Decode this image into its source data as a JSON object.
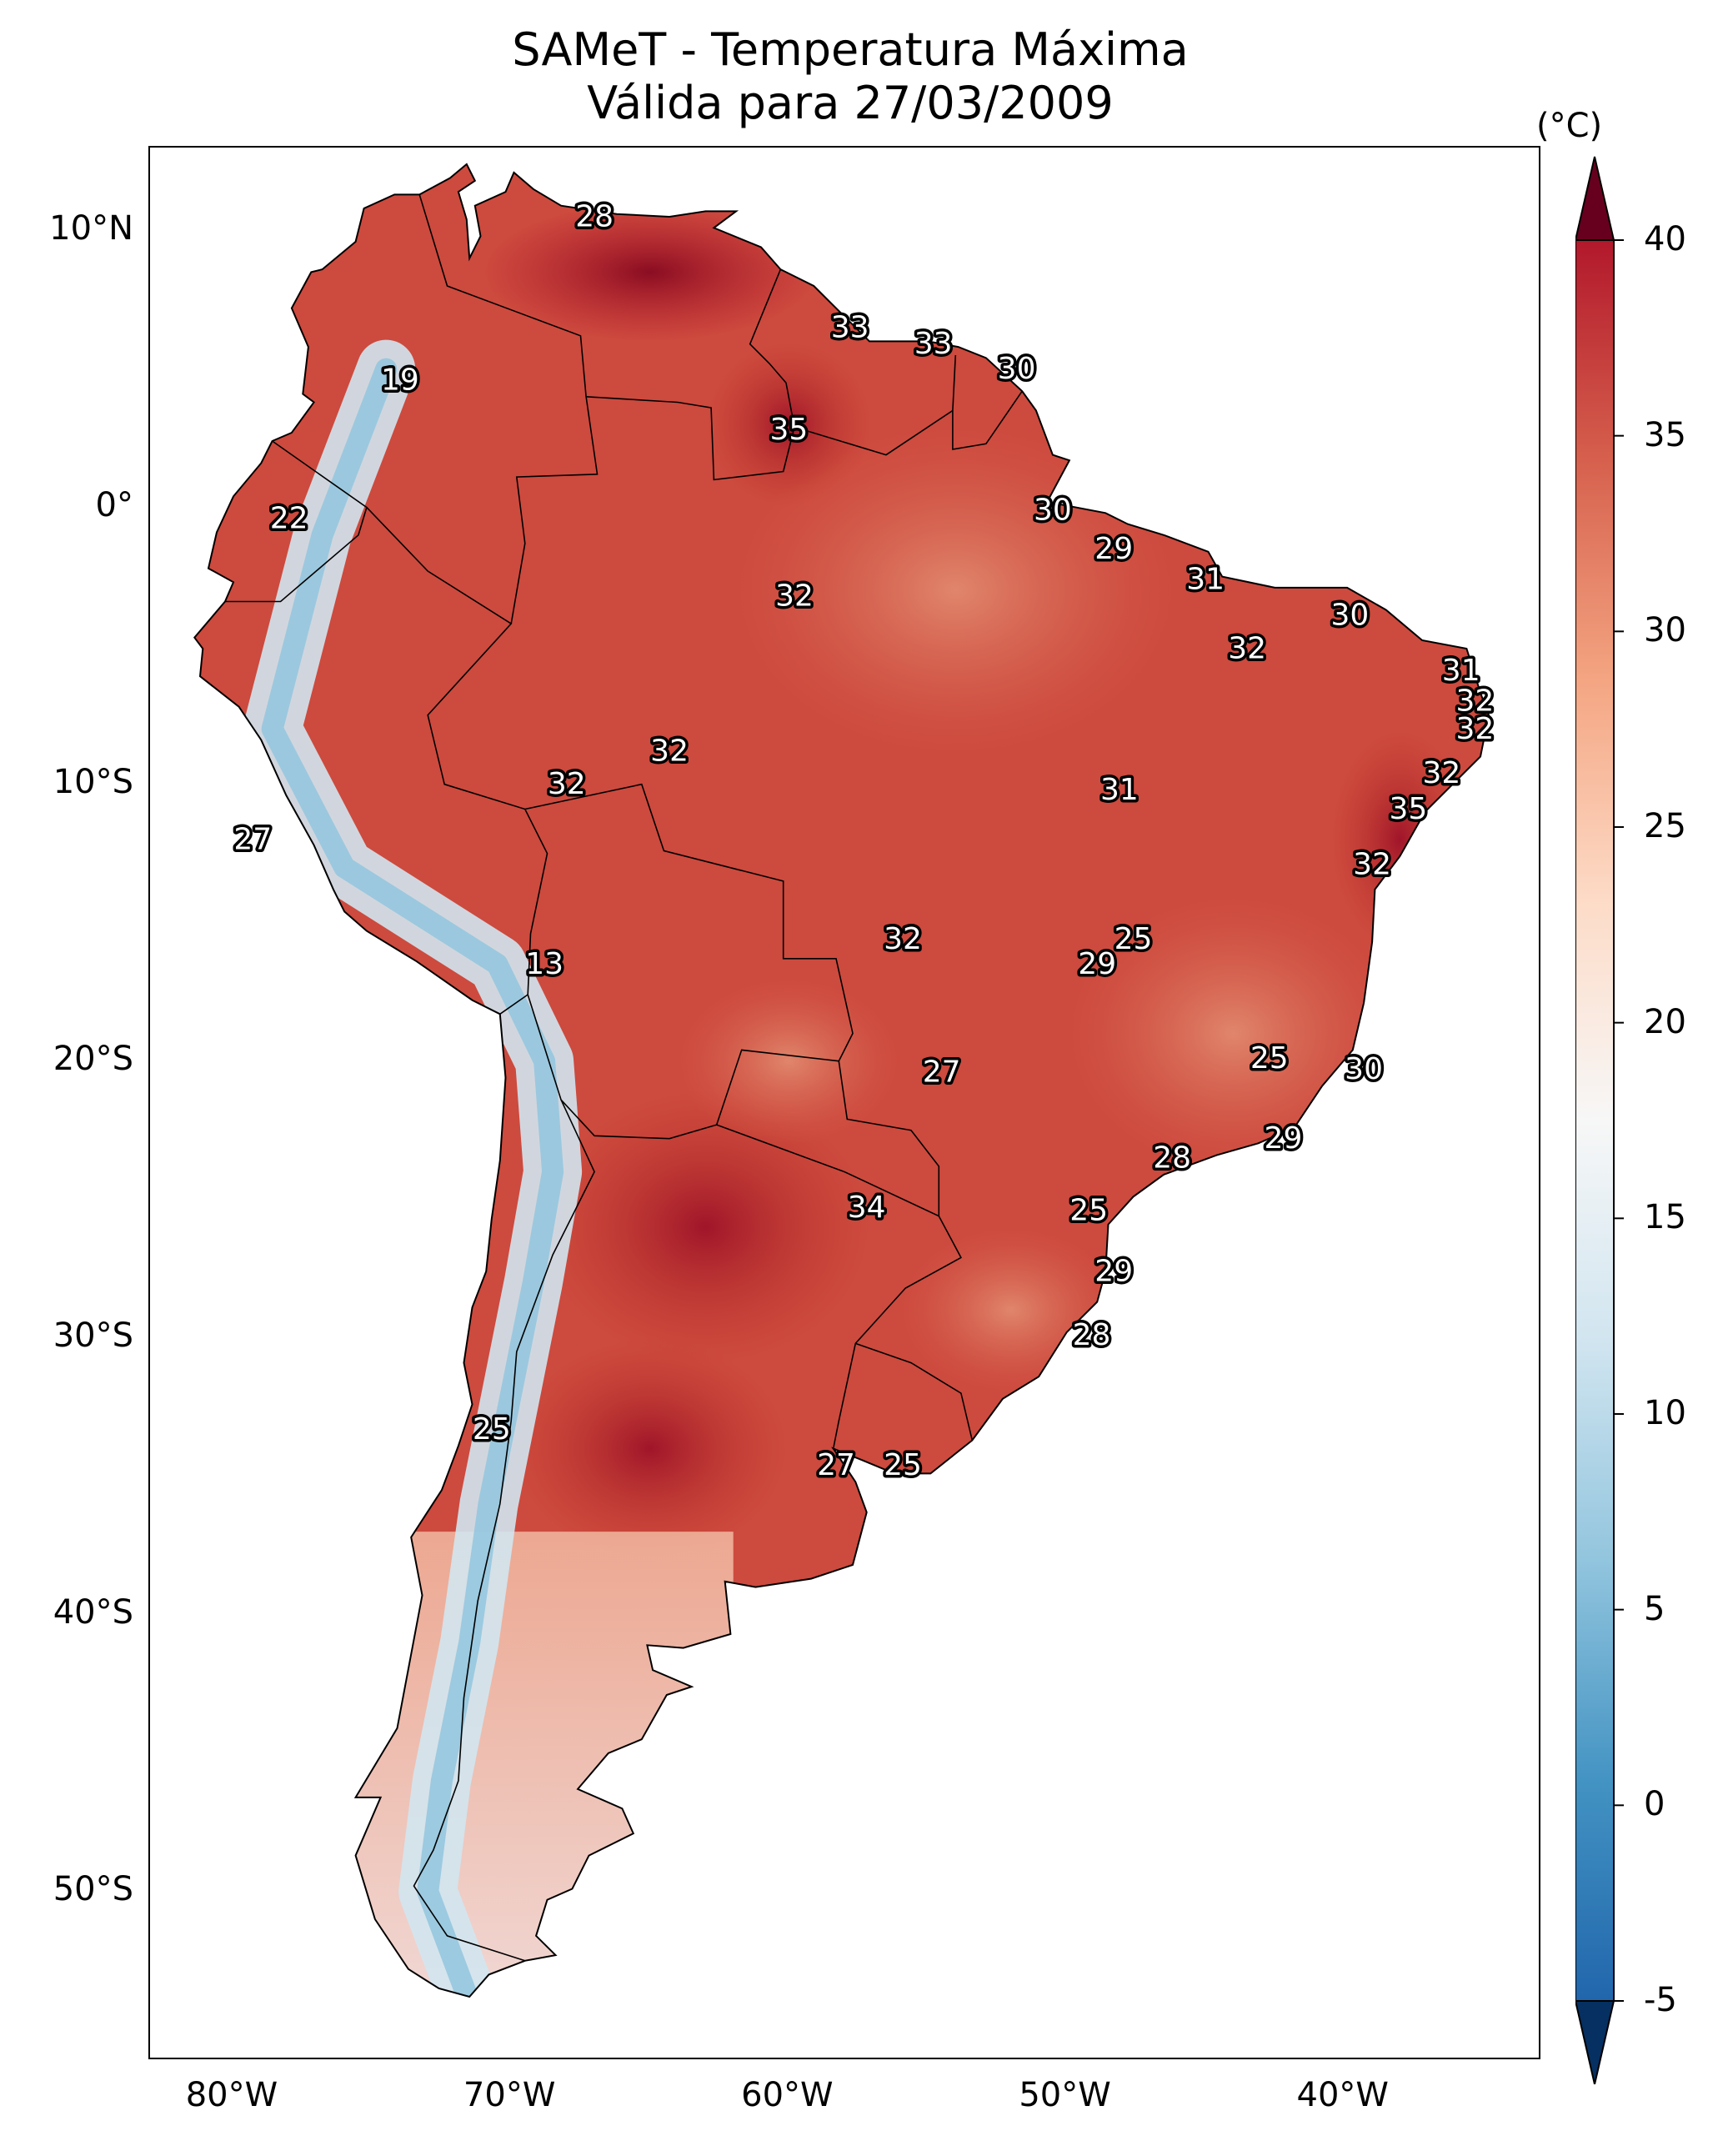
{
  "title": {
    "line1": "SAMeT - Temperatura Máxima",
    "line2": "Válida para 27/03/2009"
  },
  "lat_ticks": [
    {
      "value": 10,
      "label": "10°N"
    },
    {
      "value": 0,
      "label": "0°"
    },
    {
      "value": -10,
      "label": "10°S"
    },
    {
      "value": -20,
      "label": "20°S"
    },
    {
      "value": -30,
      "label": "30°S"
    },
    {
      "value": -40,
      "label": "40°S"
    },
    {
      "value": -50,
      "label": "50°S"
    }
  ],
  "lon_ticks": [
    {
      "value": -80,
      "label": "80°W"
    },
    {
      "value": -70,
      "label": "70°W"
    },
    {
      "value": -60,
      "label": "60°W"
    },
    {
      "value": -50,
      "label": "50°W"
    },
    {
      "value": -40,
      "label": "40°W"
    }
  ],
  "map_extent": {
    "lon_min": -83,
    "lon_max": -33,
    "lat_min": -56,
    "lat_max": 13
  },
  "colorbar": {
    "unit": "(°C)",
    "min": -5,
    "max": 40,
    "extend": "both",
    "tick_labels": [
      "-5",
      "0",
      "5",
      "10",
      "15",
      "20",
      "25",
      "30",
      "35",
      "40"
    ],
    "colors": [
      "#053061",
      "#2166ac",
      "#4393c3",
      "#92c5de",
      "#d1e5f0",
      "#f7f7f7",
      "#fddbc7",
      "#f4a582",
      "#d6604d",
      "#b2182b",
      "#67001f"
    ]
  },
  "point_labels": [
    {
      "lon": -67,
      "lat": 10.5,
      "label": "28"
    },
    {
      "lon": -57.8,
      "lat": 6.5,
      "label": "33"
    },
    {
      "lon": -54.8,
      "lat": 5.9,
      "label": "33"
    },
    {
      "lon": -51.8,
      "lat": 5.0,
      "label": "30"
    },
    {
      "lon": -74,
      "lat": 4.6,
      "label": "19"
    },
    {
      "lon": -60,
      "lat": 2.8,
      "label": "35"
    },
    {
      "lon": -78,
      "lat": -0.4,
      "label": "22"
    },
    {
      "lon": -50.5,
      "lat": -0.1,
      "label": "30"
    },
    {
      "lon": -48.3,
      "lat": -1.5,
      "label": "29"
    },
    {
      "lon": -45,
      "lat": -2.6,
      "label": "31"
    },
    {
      "lon": -59.8,
      "lat": -3.2,
      "label": "32"
    },
    {
      "lon": -39.8,
      "lat": -3.9,
      "label": "30"
    },
    {
      "lon": -43.5,
      "lat": -5.1,
      "label": "32"
    },
    {
      "lon": -35.8,
      "lat": -5.9,
      "label": "31"
    },
    {
      "lon": -35.3,
      "lat": -7.0,
      "label": "32"
    },
    {
      "lon": -35.3,
      "lat": -8.0,
      "label": "32"
    },
    {
      "lon": -64.3,
      "lat": -8.8,
      "label": "32"
    },
    {
      "lon": -36.5,
      "lat": -9.6,
      "label": "32"
    },
    {
      "lon": -68,
      "lat": -10.0,
      "label": "32"
    },
    {
      "lon": -48.1,
      "lat": -10.2,
      "label": "31"
    },
    {
      "lon": -37.7,
      "lat": -10.9,
      "label": "35"
    },
    {
      "lon": -79.3,
      "lat": -12.0,
      "label": "27"
    },
    {
      "lon": -39,
      "lat": -12.9,
      "label": "32"
    },
    {
      "lon": -55.9,
      "lat": -15.6,
      "label": "32"
    },
    {
      "lon": -47.6,
      "lat": -15.6,
      "label": "25"
    },
    {
      "lon": -48.9,
      "lat": -16.5,
      "label": "29"
    },
    {
      "lon": -68.8,
      "lat": -16.5,
      "label": "13"
    },
    {
      "lon": -42.7,
      "lat": -19.9,
      "label": "25"
    },
    {
      "lon": -39.3,
      "lat": -20.3,
      "label": "30"
    },
    {
      "lon": -54.5,
      "lat": -20.4,
      "label": "27"
    },
    {
      "lon": -42.2,
      "lat": -22.8,
      "label": "29"
    },
    {
      "lon": -46.2,
      "lat": -23.5,
      "label": "28"
    },
    {
      "lon": -57.2,
      "lat": -25.3,
      "label": "34"
    },
    {
      "lon": -49.2,
      "lat": -25.4,
      "label": "25"
    },
    {
      "lon": -48.3,
      "lat": -27.6,
      "label": "29"
    },
    {
      "lon": -49.1,
      "lat": -29.9,
      "label": "28"
    },
    {
      "lon": -70.7,
      "lat": -33.3,
      "label": "25"
    },
    {
      "lon": -58.3,
      "lat": -34.6,
      "label": "27"
    },
    {
      "lon": -55.9,
      "lat": -34.6,
      "label": "25"
    }
  ]
}
